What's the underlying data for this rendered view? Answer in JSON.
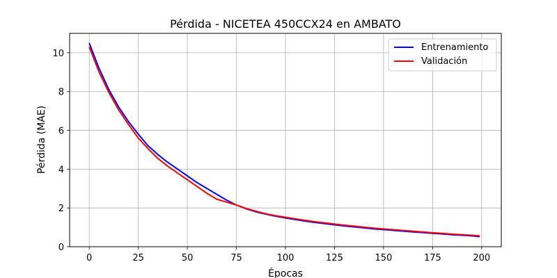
{
  "chart_data": {
    "type": "line",
    "title": "Pérdida - NICETEA 450CCX24 en AMBATO",
    "xlabel": "Épocas",
    "ylabel": "Pérdida (MAE)",
    "xlim": [
      -10,
      210
    ],
    "ylim": [
      0,
      11
    ],
    "xticks": [
      0,
      25,
      50,
      75,
      100,
      125,
      150,
      175,
      200
    ],
    "yticks": [
      0,
      2,
      4,
      6,
      8,
      10
    ],
    "grid": true,
    "legend_position": "top-right",
    "x": [
      0,
      5,
      10,
      15,
      20,
      25,
      30,
      35,
      40,
      45,
      50,
      55,
      60,
      65,
      70,
      75,
      80,
      85,
      90,
      95,
      100,
      105,
      110,
      115,
      120,
      125,
      130,
      135,
      140,
      145,
      150,
      155,
      160,
      165,
      170,
      175,
      180,
      185,
      190,
      195,
      199
    ],
    "series": [
      {
        "name": "Entrenamiento",
        "color": "#0000ff",
        "values": [
          10.5,
          9.2,
          8.1,
          7.2,
          6.45,
          5.8,
          5.2,
          4.75,
          4.35,
          4.0,
          3.65,
          3.3,
          3.0,
          2.7,
          2.4,
          2.15,
          1.95,
          1.8,
          1.68,
          1.57,
          1.48,
          1.4,
          1.32,
          1.25,
          1.19,
          1.13,
          1.07,
          1.02,
          0.97,
          0.92,
          0.88,
          0.84,
          0.8,
          0.76,
          0.73,
          0.69,
          0.66,
          0.62,
          0.59,
          0.56,
          0.52
        ]
      },
      {
        "name": "Validación",
        "color": "#ff0000",
        "values": [
          10.3,
          9.0,
          7.95,
          7.05,
          6.3,
          5.6,
          5.05,
          4.55,
          4.15,
          3.8,
          3.45,
          3.1,
          2.75,
          2.45,
          2.3,
          2.15,
          1.97,
          1.83,
          1.7,
          1.6,
          1.52,
          1.44,
          1.36,
          1.29,
          1.23,
          1.17,
          1.11,
          1.06,
          1.01,
          0.96,
          0.92,
          0.88,
          0.84,
          0.8,
          0.76,
          0.72,
          0.69,
          0.65,
          0.62,
          0.59,
          0.56
        ]
      }
    ]
  }
}
